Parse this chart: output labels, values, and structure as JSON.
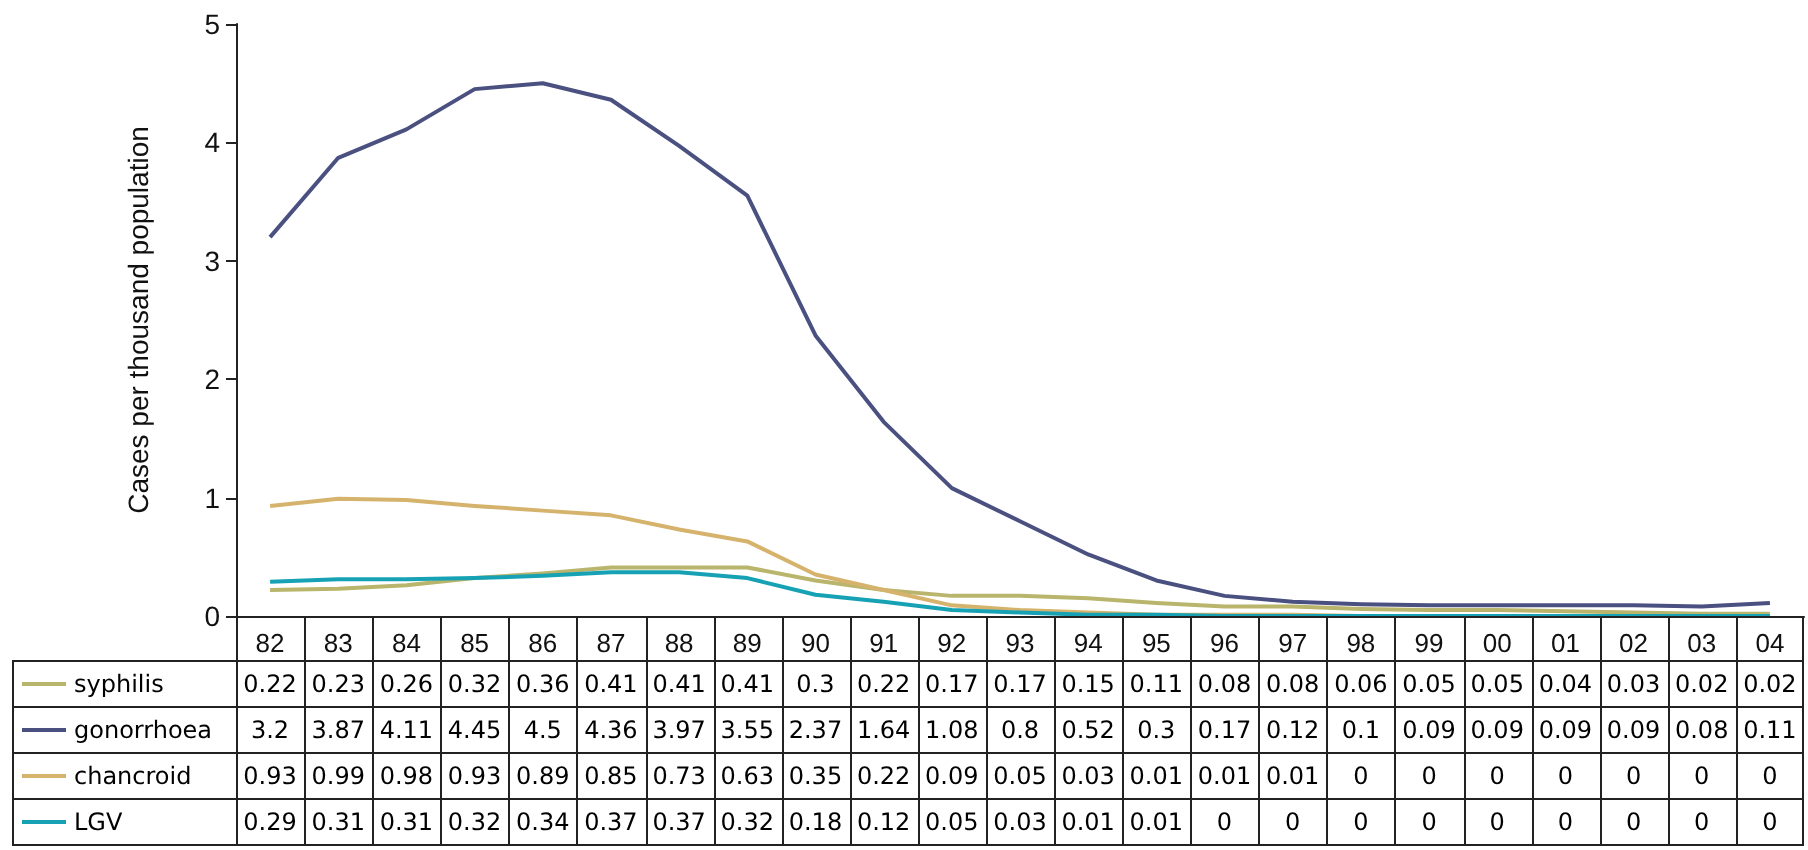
{
  "chart_data": {
    "type": "line",
    "ylabel": "Cases per thousand population",
    "categories": [
      "82",
      "83",
      "84",
      "85",
      "86",
      "87",
      "88",
      "89",
      "90",
      "91",
      "92",
      "93",
      "94",
      "95",
      "96",
      "97",
      "98",
      "99",
      "00",
      "01",
      "02",
      "03",
      "04"
    ],
    "series": [
      {
        "name": "syphilis",
        "color": "#b9b56c",
        "values": [
          0.22,
          0.23,
          0.26,
          0.32,
          0.36,
          0.41,
          0.41,
          0.41,
          0.3,
          0.22,
          0.17,
          0.17,
          0.15,
          0.11,
          0.08,
          0.08,
          0.06,
          0.05,
          0.05,
          0.04,
          0.03,
          0.02,
          0.02
        ]
      },
      {
        "name": "gonorrhoea",
        "color": "#4a5080",
        "values": [
          3.2,
          3.87,
          4.11,
          4.45,
          4.5,
          4.36,
          3.97,
          3.55,
          2.37,
          1.64,
          1.08,
          0.8,
          0.52,
          0.3,
          0.17,
          0.12,
          0.1,
          0.09,
          0.09,
          0.09,
          0.09,
          0.08,
          0.11
        ]
      },
      {
        "name": "chancroid",
        "color": "#d6b36c",
        "values": [
          0.93,
          0.99,
          0.98,
          0.93,
          0.89,
          0.85,
          0.73,
          0.63,
          0.35,
          0.22,
          0.09,
          0.05,
          0.03,
          0.01,
          0.01,
          0.01,
          0,
          0,
          0,
          0,
          0,
          0,
          0
        ]
      },
      {
        "name": "LGV",
        "color": "#16a2b4",
        "values": [
          0.29,
          0.31,
          0.31,
          0.32,
          0.34,
          0.37,
          0.37,
          0.32,
          0.18,
          0.12,
          0.05,
          0.03,
          0.01,
          0.01,
          0,
          0,
          0,
          0,
          0,
          0,
          0,
          0,
          0
        ]
      }
    ],
    "ylim": [
      0,
      5
    ],
    "yticks": [
      0,
      1,
      2,
      3,
      4,
      5
    ],
    "grid": false,
    "legend": "bottom",
    "data_labels": true,
    "marker": "none",
    "line_style": "solid"
  }
}
